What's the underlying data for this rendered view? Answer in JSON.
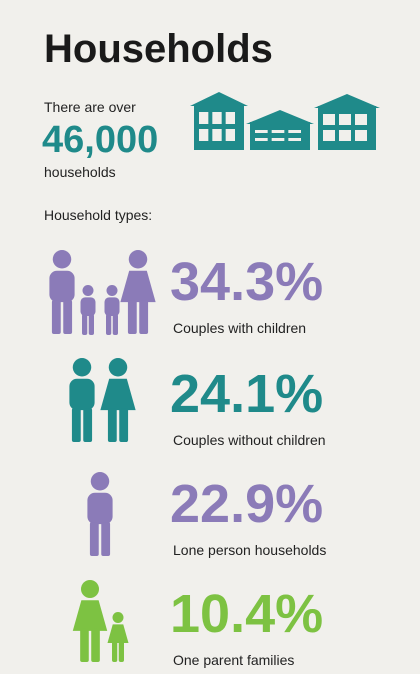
{
  "header": {
    "title": "Households"
  },
  "summary": {
    "intro": "There are over",
    "count": "46,000",
    "unit": "households"
  },
  "types_label": "Household types:",
  "types": [
    {
      "percent": "34.3%",
      "label": "Couples with children"
    },
    {
      "percent": "24.1%",
      "label": "Couples without children"
    },
    {
      "percent": "22.9%",
      "label": "Lone person households"
    },
    {
      "percent": "10.4%",
      "label": "One parent families"
    }
  ]
}
